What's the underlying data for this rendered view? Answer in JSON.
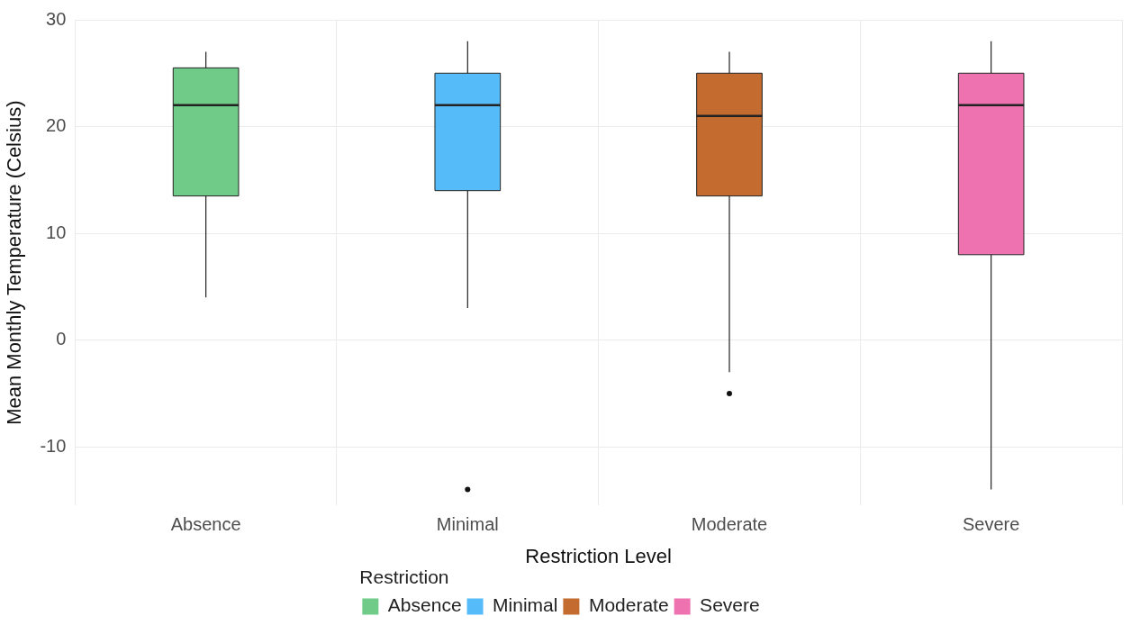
{
  "chart_data": {
    "type": "box",
    "xlabel": "Restriction Level",
    "ylabel": "Mean Monthly Temperature (Celsius)",
    "categories": [
      "Absence",
      "Minimal",
      "Moderate",
      "Severe"
    ],
    "series": [
      {
        "name": "Absence",
        "color": "#6fcb87",
        "boxes": [
          {
            "low": 4,
            "q1": 13.5,
            "median": 22,
            "q3": 25.5,
            "high": 27
          },
          null,
          null,
          null
        ]
      },
      {
        "name": "Minimal",
        "color": "#56bcf9",
        "boxes": [
          null,
          {
            "low": 3,
            "q1": 14,
            "median": 22,
            "q3": 25,
            "high": 28,
            "outliers": [
              -14
            ]
          },
          null,
          null
        ]
      },
      {
        "name": "Moderate",
        "color": "#c46c30",
        "boxes": [
          null,
          null,
          {
            "low": -3,
            "q1": 13.5,
            "median": 21,
            "q3": 25,
            "high": 27,
            "outliers": [
              -5
            ]
          },
          null
        ]
      },
      {
        "name": "Severe",
        "color": "#ee72b0",
        "boxes": [
          null,
          null,
          null,
          {
            "low": -14,
            "q1": 8,
            "median": 22,
            "q3": 25,
            "high": 28
          }
        ]
      }
    ],
    "ylim": [
      -15.5,
      30
    ],
    "yticks": [
      -10,
      0,
      10,
      20,
      30
    ],
    "grid": true,
    "legend": "bottom",
    "legend_title": "Restriction"
  }
}
